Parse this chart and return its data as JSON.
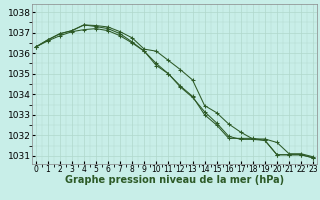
{
  "background_color": "#c8eee8",
  "grid_color": "#b0d8cc",
  "line_color": "#2d5a27",
  "marker_color": "#2d5a27",
  "xlabel": "Graphe pression niveau de la mer (hPa)",
  "xlabel_fontsize": 7,
  "ytick_fontsize": 6.5,
  "xtick_fontsize": 5.5,
  "ylim": [
    1030.6,
    1038.4
  ],
  "xlim": [
    -0.3,
    23.3
  ],
  "yticks": [
    1031,
    1032,
    1033,
    1034,
    1035,
    1036,
    1037,
    1038
  ],
  "xticks": [
    0,
    1,
    2,
    3,
    4,
    5,
    6,
    7,
    8,
    9,
    10,
    11,
    12,
    13,
    14,
    15,
    16,
    17,
    18,
    19,
    20,
    21,
    22,
    23
  ],
  "series": [
    [
      1036.3,
      1036.6,
      1036.85,
      1037.05,
      1037.15,
      1037.2,
      1037.1,
      1036.85,
      1036.5,
      1036.1,
      1035.5,
      1035.0,
      1034.4,
      1033.9,
      1033.0,
      1032.5,
      1031.85,
      1031.85,
      1031.85,
      1031.75,
      1031.05,
      1031.05,
      1031.05,
      1030.9
    ],
    [
      1036.3,
      1036.65,
      1036.95,
      1037.1,
      1037.38,
      1037.3,
      1037.2,
      1036.95,
      1036.55,
      1036.1,
      1035.4,
      1035.0,
      1034.35,
      1033.85,
      1033.15,
      1032.6,
      1031.95,
      1031.8,
      1031.8,
      1031.75,
      1031.05,
      1031.05,
      1031.05,
      1030.9
    ],
    [
      1036.3,
      1036.65,
      1036.95,
      1037.1,
      1037.38,
      1037.35,
      1037.28,
      1037.05,
      1036.75,
      1036.2,
      1036.1,
      1035.65,
      1035.2,
      1034.7,
      1033.45,
      1033.1,
      1032.55,
      1032.15,
      1031.82,
      1031.82,
      1031.65,
      1031.1,
      1031.1,
      1030.95
    ]
  ]
}
